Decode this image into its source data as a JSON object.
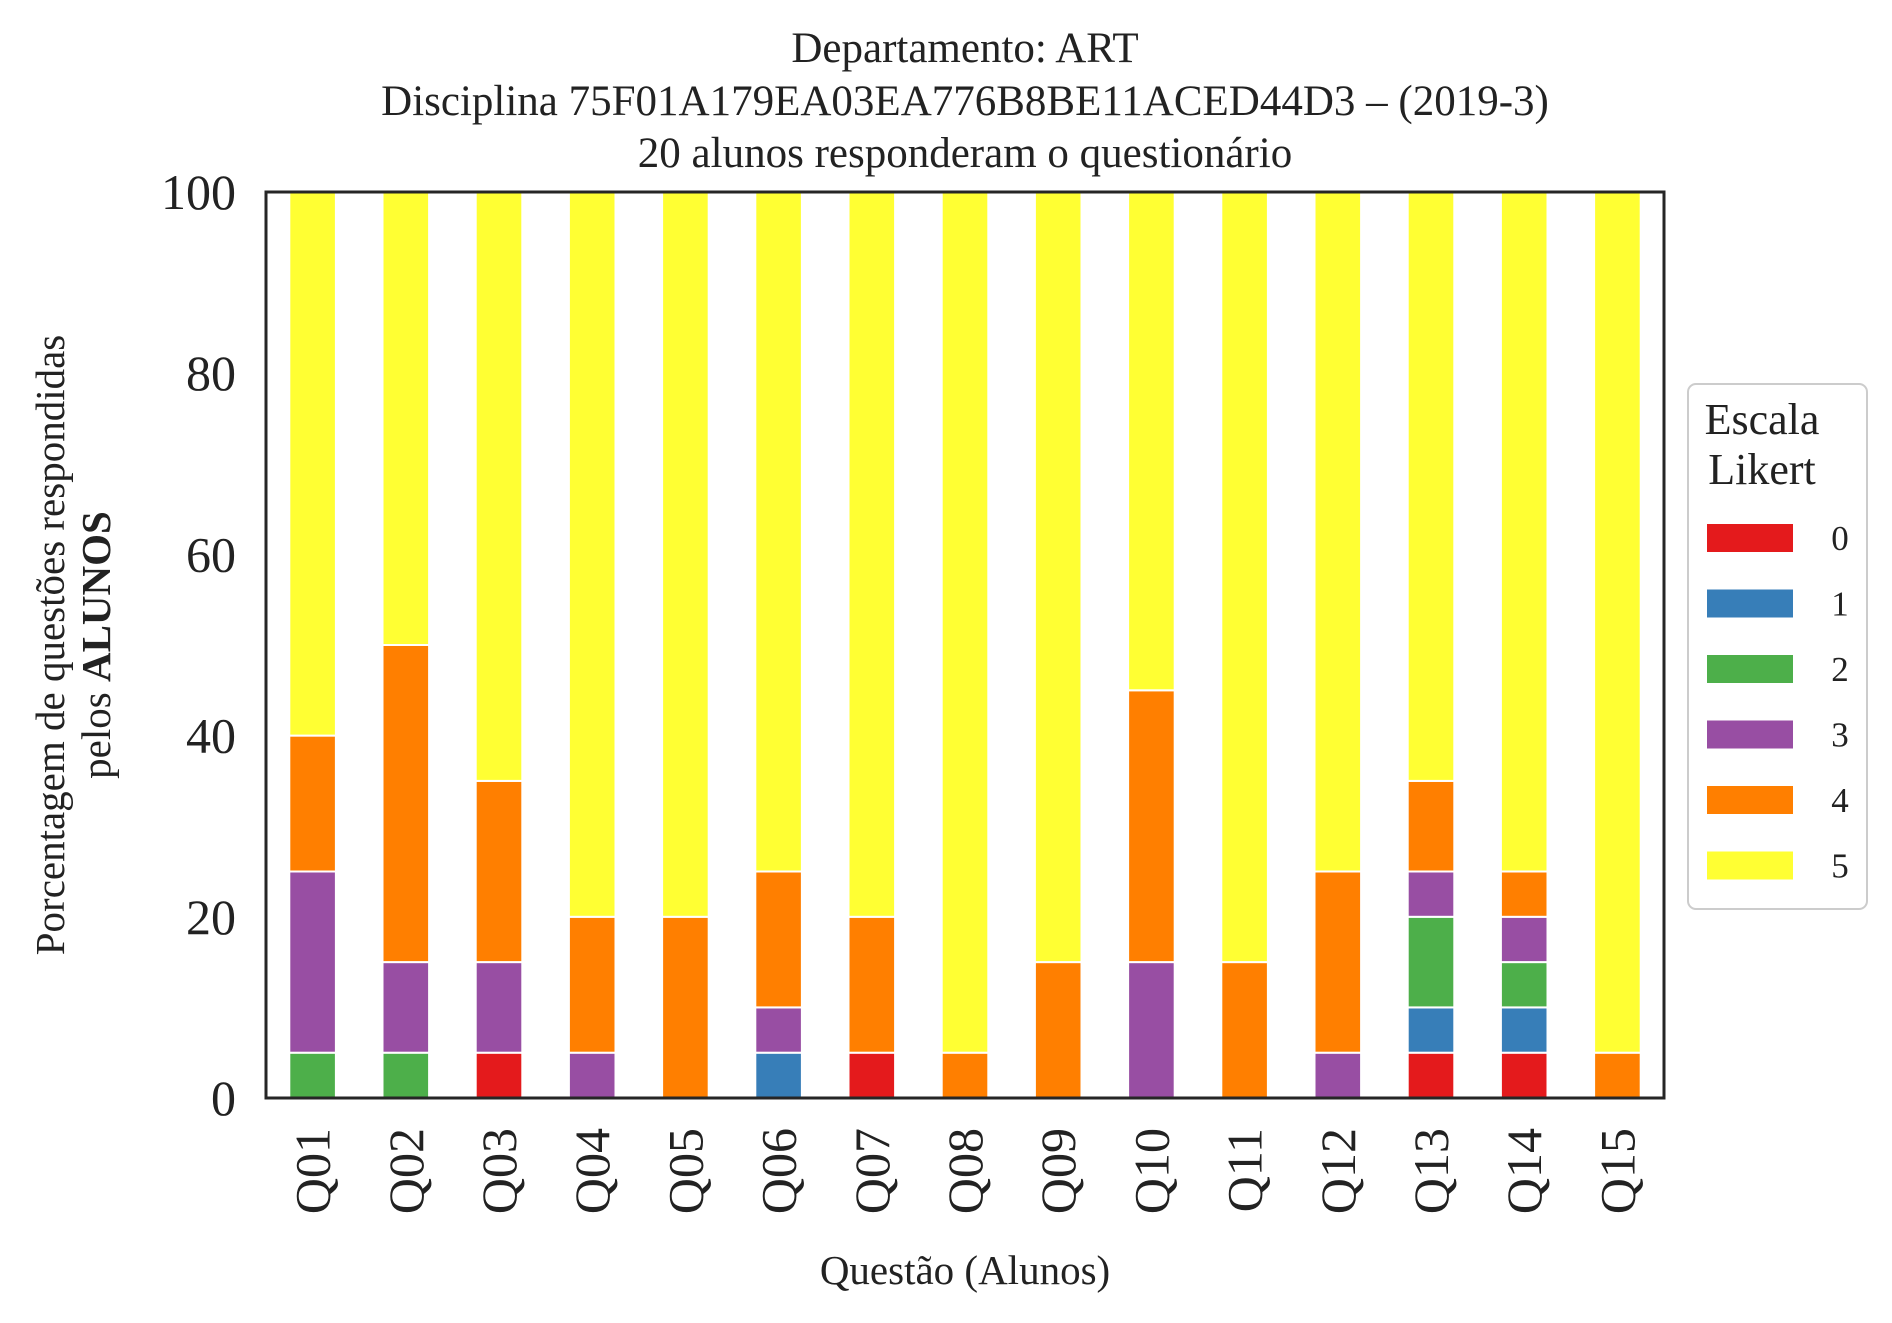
{
  "chart_data": {
    "type": "bar",
    "stacked": true,
    "title_lines": [
      "Departamento: ART",
      "Disciplina 75F01A179EA03EA776B8BE11ACED44D3 – (2019-3)",
      "20 alunos responderam o questionário"
    ],
    "xlabel": "Questão (Alunos)",
    "ylabel_line1": "Porcentagem de questões respondidas",
    "ylabel_line2_prefix": "pelos ",
    "ylabel_line2_bold": "ALUNOS",
    "ylim": [
      0,
      100
    ],
    "yticks": [
      "0",
      "20",
      "40",
      "60",
      "80",
      "100"
    ],
    "grid": false,
    "legend_placement": "right",
    "legend_title_lines": [
      "Escala",
      "Likert"
    ],
    "categories": [
      "Q01",
      "Q02",
      "Q03",
      "Q04",
      "Q05",
      "Q06",
      "Q07",
      "Q08",
      "Q09",
      "Q10",
      "Q11",
      "Q12",
      "Q13",
      "Q14",
      "Q15"
    ],
    "series": [
      {
        "name": "0",
        "color": "#e41a1c",
        "values": [
          0,
          0,
          5,
          0,
          0,
          0,
          5,
          0,
          0,
          0,
          0,
          0,
          5,
          5,
          0
        ]
      },
      {
        "name": "1",
        "color": "#377eb8",
        "values": [
          0,
          0,
          0,
          0,
          0,
          5,
          0,
          0,
          0,
          0,
          0,
          0,
          5,
          5,
          0
        ]
      },
      {
        "name": "2",
        "color": "#4daf4a",
        "values": [
          5,
          5,
          0,
          0,
          0,
          0,
          0,
          0,
          0,
          0,
          0,
          0,
          10,
          5,
          0
        ]
      },
      {
        "name": "3",
        "color": "#984ea3",
        "values": [
          20,
          10,
          10,
          5,
          0,
          5,
          0,
          0,
          0,
          15,
          0,
          5,
          5,
          5,
          0
        ]
      },
      {
        "name": "4",
        "color": "#ff7f00",
        "values": [
          15,
          35,
          20,
          15,
          20,
          15,
          15,
          5,
          15,
          30,
          15,
          20,
          10,
          5,
          5
        ]
      },
      {
        "name": "5",
        "color": "#ffff33",
        "values": [
          60,
          50,
          65,
          80,
          80,
          75,
          80,
          95,
          85,
          55,
          85,
          75,
          65,
          75,
          95
        ]
      }
    ]
  }
}
